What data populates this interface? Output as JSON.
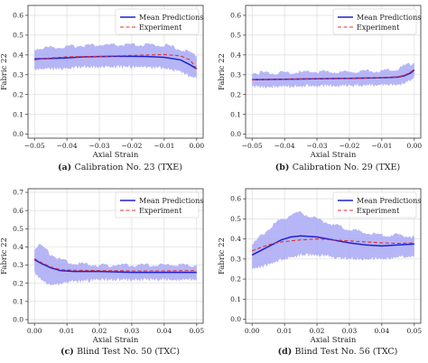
{
  "chart_data": [
    {
      "type": "line",
      "caption_letter": "(a)",
      "caption_text": "Calibration No. 23 (TXE)",
      "xlabel": "Axial Strain",
      "ylabel": "Fabric 22",
      "xlim": [
        -0.052,
        0.002
      ],
      "ylim": [
        -0.02,
        0.65
      ],
      "xticks": [
        -0.05,
        -0.04,
        -0.03,
        -0.02,
        -0.01,
        0.0
      ],
      "xtick_labels": [
        "−0.05",
        "−0.04",
        "−0.03",
        "−0.02",
        "−0.01",
        "0.00"
      ],
      "yticks": [
        0.0,
        0.1,
        0.2,
        0.3,
        0.4,
        0.5,
        0.6
      ],
      "ytick_labels": [
        "0.0",
        "0.1",
        "0.2",
        "0.3",
        "0.4",
        "0.5",
        "0.6"
      ],
      "grid": true,
      "legend_position": "upper right",
      "colors": {
        "mean": "#1f1fd6",
        "experiment": "#e03030",
        "band": "#a9a9f5"
      },
      "band_pts": [
        [
          -0.05,
          0.33,
          0.43
        ],
        [
          -0.045,
          0.33,
          0.44
        ],
        [
          -0.04,
          0.33,
          0.44
        ],
        [
          -0.035,
          0.34,
          0.45
        ],
        [
          -0.03,
          0.34,
          0.45
        ],
        [
          -0.025,
          0.34,
          0.45
        ],
        [
          -0.02,
          0.34,
          0.45
        ],
        [
          -0.015,
          0.34,
          0.45
        ],
        [
          -0.01,
          0.33,
          0.45
        ],
        [
          -0.005,
          0.32,
          0.43
        ],
        [
          -0.002,
          0.29,
          0.41
        ],
        [
          0.0,
          0.28,
          0.4
        ]
      ],
      "series": [
        {
          "name": "Mean Predictions",
          "style": "solid",
          "x": [
            -0.05,
            -0.045,
            -0.04,
            -0.035,
            -0.03,
            -0.025,
            -0.02,
            -0.015,
            -0.01,
            -0.005,
            -0.002,
            0.0
          ],
          "y": [
            0.38,
            0.382,
            0.385,
            0.39,
            0.392,
            0.393,
            0.393,
            0.392,
            0.388,
            0.375,
            0.35,
            0.33
          ]
        },
        {
          "name": "Experiment",
          "style": "dashed",
          "x": [
            -0.05,
            -0.045,
            -0.04,
            -0.035,
            -0.03,
            -0.025,
            -0.02,
            -0.015,
            -0.01,
            -0.005,
            -0.002,
            0.0
          ],
          "y": [
            0.375,
            0.385,
            0.39,
            0.392,
            0.393,
            0.395,
            0.398,
            0.4,
            0.402,
            0.395,
            0.375,
            0.33
          ]
        }
      ]
    },
    {
      "type": "line",
      "caption_letter": "(b)",
      "caption_text": "Calibration No. 29 (TXE)",
      "xlabel": "Axial Strain",
      "ylabel": "Fabric 22",
      "xlim": [
        -0.052,
        0.002
      ],
      "ylim": [
        -0.02,
        0.65
      ],
      "xticks": [
        -0.05,
        -0.04,
        -0.03,
        -0.02,
        -0.01,
        0.0
      ],
      "xtick_labels": [
        "−0.05",
        "−0.04",
        "−0.03",
        "−0.02",
        "−0.01",
        "0.00"
      ],
      "yticks": [
        0.0,
        0.1,
        0.2,
        0.3,
        0.4,
        0.5,
        0.6
      ],
      "ytick_labels": [
        "0.0",
        "0.1",
        "0.2",
        "0.3",
        "0.4",
        "0.5",
        "0.6"
      ],
      "grid": true,
      "legend_position": "upper right",
      "colors": {
        "mean": "#1f1fd6",
        "experiment": "#e03030",
        "band": "#a9a9f5"
      },
      "band_pts": [
        [
          -0.05,
          0.24,
          0.31
        ],
        [
          -0.04,
          0.24,
          0.31
        ],
        [
          -0.03,
          0.245,
          0.315
        ],
        [
          -0.02,
          0.245,
          0.315
        ],
        [
          -0.01,
          0.25,
          0.32
        ],
        [
          -0.005,
          0.25,
          0.33
        ],
        [
          -0.003,
          0.26,
          0.345
        ],
        [
          -0.001,
          0.27,
          0.355
        ],
        [
          0.0,
          0.29,
          0.36
        ]
      ],
      "series": [
        {
          "name": "Mean Predictions",
          "style": "solid",
          "x": [
            -0.05,
            -0.04,
            -0.03,
            -0.02,
            -0.01,
            -0.005,
            -0.003,
            -0.001,
            0.0
          ],
          "y": [
            0.275,
            0.277,
            0.28,
            0.282,
            0.285,
            0.288,
            0.295,
            0.31,
            0.325
          ]
        },
        {
          "name": "Experiment",
          "style": "dashed",
          "x": [
            -0.05,
            -0.04,
            -0.03,
            -0.02,
            -0.01,
            -0.005,
            -0.003,
            -0.001,
            0.0
          ],
          "y": [
            0.275,
            0.277,
            0.28,
            0.283,
            0.286,
            0.29,
            0.298,
            0.315,
            0.33
          ]
        }
      ]
    },
    {
      "type": "line",
      "caption_letter": "(c)",
      "caption_text": "Blind Test No. 50 (TXC)",
      "xlabel": "Axial Strain",
      "ylabel": "Fabric 22",
      "xlim": [
        -0.002,
        0.052
      ],
      "ylim": [
        -0.02,
        0.72
      ],
      "xticks": [
        0.0,
        0.01,
        0.02,
        0.03,
        0.04,
        0.05
      ],
      "xtick_labels": [
        "0.00",
        "0.01",
        "0.02",
        "0.03",
        "0.04",
        "0.05"
      ],
      "yticks": [
        0.0,
        0.1,
        0.2,
        0.3,
        0.4,
        0.5,
        0.6,
        0.7
      ],
      "ytick_labels": [
        "0.0",
        "0.1",
        "0.2",
        "0.3",
        "0.4",
        "0.5",
        "0.6",
        "0.7"
      ],
      "grid": true,
      "legend_position": "upper right",
      "colors": {
        "mean": "#1f1fd6",
        "experiment": "#e03030",
        "band": "#a9a9f5"
      },
      "band_pts": [
        [
          0.0,
          0.26,
          0.39
        ],
        [
          0.002,
          0.22,
          0.41
        ],
        [
          0.005,
          0.19,
          0.36
        ],
        [
          0.008,
          0.2,
          0.33
        ],
        [
          0.012,
          0.21,
          0.31
        ],
        [
          0.02,
          0.22,
          0.3
        ],
        [
          0.03,
          0.22,
          0.3
        ],
        [
          0.04,
          0.22,
          0.3
        ],
        [
          0.05,
          0.22,
          0.3
        ]
      ],
      "series": [
        {
          "name": "Mean Predictions",
          "style": "solid",
          "x": [
            0.0,
            0.002,
            0.005,
            0.008,
            0.012,
            0.02,
            0.03,
            0.04,
            0.05
          ],
          "y": [
            0.33,
            0.31,
            0.285,
            0.27,
            0.265,
            0.265,
            0.26,
            0.26,
            0.26
          ]
        },
        {
          "name": "Experiment",
          "style": "dashed",
          "x": [
            0.0,
            0.002,
            0.005,
            0.008,
            0.012,
            0.02,
            0.03,
            0.04,
            0.05
          ],
          "y": [
            0.335,
            0.315,
            0.29,
            0.275,
            0.272,
            0.27,
            0.268,
            0.268,
            0.27
          ]
        }
      ]
    },
    {
      "type": "line",
      "caption_letter": "(d)",
      "caption_text": "Blind Test No. 56 (TXC)",
      "xlabel": "Axial Strain",
      "ylabel": "Fabric 22",
      "xlim": [
        -0.002,
        0.052
      ],
      "ylim": [
        -0.02,
        0.65
      ],
      "xticks": [
        0.0,
        0.01,
        0.02,
        0.03,
        0.04,
        0.05
      ],
      "xtick_labels": [
        "0.00",
        "0.01",
        "0.02",
        "0.03",
        "0.04",
        "0.05"
      ],
      "yticks": [
        0.0,
        0.1,
        0.2,
        0.3,
        0.4,
        0.5,
        0.6
      ],
      "ytick_labels": [
        "0.0",
        "0.1",
        "0.2",
        "0.3",
        "0.4",
        "0.5",
        "0.6"
      ],
      "grid": true,
      "legend_position": "upper right",
      "colors": {
        "mean": "#1f1fd6",
        "experiment": "#e03030",
        "band": "#a9a9f5"
      },
      "band_pts": [
        [
          0.0,
          0.25,
          0.37
        ],
        [
          0.003,
          0.26,
          0.42
        ],
        [
          0.008,
          0.29,
          0.49
        ],
        [
          0.012,
          0.31,
          0.52
        ],
        [
          0.015,
          0.32,
          0.53
        ],
        [
          0.02,
          0.32,
          0.5
        ],
        [
          0.025,
          0.31,
          0.47
        ],
        [
          0.03,
          0.3,
          0.45
        ],
        [
          0.035,
          0.3,
          0.43
        ],
        [
          0.04,
          0.3,
          0.42
        ],
        [
          0.045,
          0.31,
          0.42
        ],
        [
          0.05,
          0.31,
          0.41
        ]
      ],
      "series": [
        {
          "name": "Mean Predictions",
          "style": "solid",
          "x": [
            0.0,
            0.003,
            0.006,
            0.009,
            0.012,
            0.015,
            0.02,
            0.025,
            0.03,
            0.035,
            0.04,
            0.045,
            0.05
          ],
          "y": [
            0.32,
            0.345,
            0.37,
            0.395,
            0.41,
            0.415,
            0.41,
            0.395,
            0.38,
            0.37,
            0.365,
            0.37,
            0.375
          ]
        },
        {
          "name": "Experiment",
          "style": "dashed",
          "x": [
            0.0,
            0.003,
            0.006,
            0.009,
            0.012,
            0.015,
            0.02,
            0.025,
            0.03,
            0.035,
            0.04,
            0.045,
            0.05
          ],
          "y": [
            0.34,
            0.36,
            0.375,
            0.385,
            0.39,
            0.395,
            0.4,
            0.395,
            0.39,
            0.385,
            0.38,
            0.378,
            0.38
          ]
        }
      ]
    }
  ]
}
